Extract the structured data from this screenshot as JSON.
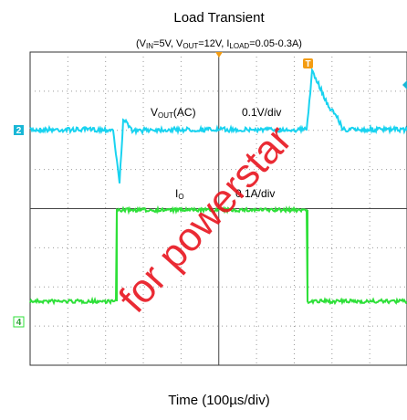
{
  "title": "Load Transient",
  "subtitle": {
    "parts": [
      "(V",
      "IN",
      "=5V, V",
      "OUT",
      "=12V, I",
      "LOAD",
      "=0.05-0.3A)"
    ]
  },
  "channel2": {
    "marker": "2",
    "label": [
      "V",
      "OUT",
      "(AC)"
    ],
    "scale": "0.1V/div"
  },
  "channel4": {
    "marker": "4",
    "label": [
      "I",
      "O"
    ],
    "scale": "0.1A/div"
  },
  "trigger": "T",
  "xlabel": "Time (100µs/div)",
  "watermark": "for powerstar"
}
